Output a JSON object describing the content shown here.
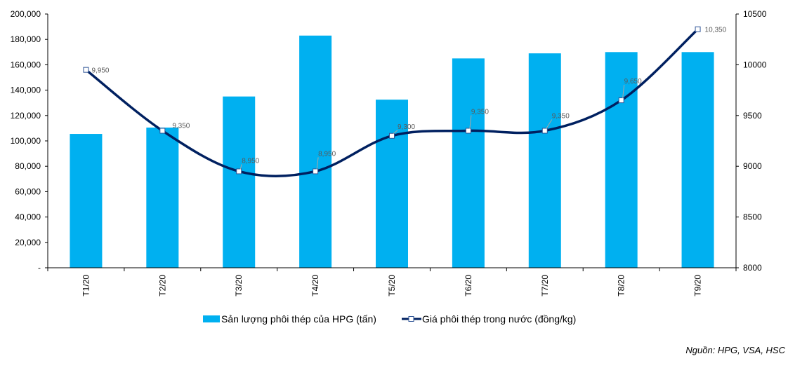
{
  "chart_data": {
    "type": "bar+line",
    "categories": [
      "T1/20",
      "T2/20",
      "T3/20",
      "T4/20",
      "T5/20",
      "T6/20",
      "T7/20",
      "T8/20",
      "T9/20"
    ],
    "series": [
      {
        "name": "Sản lượng phôi thép của HPG (tấn)",
        "type": "bar",
        "axis": "left",
        "values": [
          105500,
          110500,
          135000,
          183000,
          132500,
          165000,
          169000,
          170000,
          170000
        ],
        "color": "#00B0F0"
      },
      {
        "name": "Giá phôi thép trong nước (đồng/kg)",
        "type": "line",
        "axis": "right",
        "smooth": true,
        "values": [
          9950,
          9350,
          8950,
          8950,
          9300,
          9350,
          9350,
          9650,
          10350
        ],
        "data_labels": [
          "9,950",
          "9,350",
          "8,950",
          "8,950",
          "9,300",
          "9,350",
          "9,350",
          "9,650",
          "10,350"
        ],
        "color": "#002060"
      }
    ],
    "y_left": {
      "range": [
        0,
        200000
      ],
      "ticks": [
        "-",
        "20,000",
        "40,000",
        "60,000",
        "80,000",
        "100,000",
        "120,000",
        "140,000",
        "160,000",
        "180,000",
        "200,000"
      ]
    },
    "y_right": {
      "range": [
        8000,
        10500
      ],
      "ticks": [
        "8000",
        "8500",
        "9000",
        "9500",
        "10000",
        "10500"
      ]
    },
    "grid": false,
    "legend": "bottom",
    "source": "Nguồn: HPG, VSA, HSC"
  }
}
